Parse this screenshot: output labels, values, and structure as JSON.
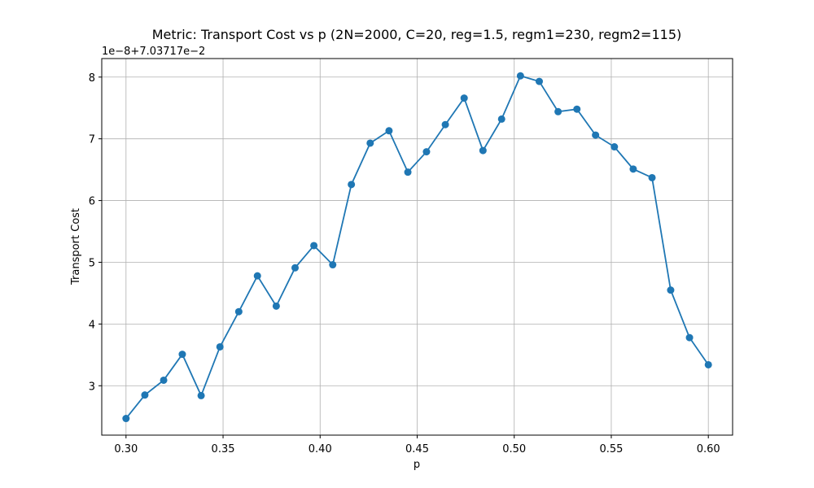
{
  "chart_data": {
    "type": "line",
    "title": "Metric: Transport Cost vs p (2N=2000, C=20, reg=1.5, regm1=230, regm2=115)",
    "xlabel": "p",
    "ylabel": "Transport Cost",
    "offset_text": "1e−8+7.03717e−2",
    "xlim": [
      0.2875,
      0.6125
    ],
    "ylim": [
      2.2,
      8.3
    ],
    "x_ticks": [
      0.3,
      0.35,
      0.4,
      0.45,
      0.5,
      0.55,
      0.6
    ],
    "x_tick_labels": [
      "0.30",
      "0.35",
      "0.40",
      "0.45",
      "0.50",
      "0.55",
      "0.60"
    ],
    "y_ticks": [
      3,
      4,
      5,
      6,
      7,
      8
    ],
    "y_tick_labels": [
      "3",
      "4",
      "5",
      "6",
      "7",
      "8"
    ],
    "grid": true,
    "marker": "circle",
    "color": "#1f77b4",
    "series": [
      {
        "x": [
          0.3,
          0.3097,
          0.3194,
          0.329,
          0.3387,
          0.3484,
          0.3581,
          0.3677,
          0.3774,
          0.3871,
          0.3968,
          0.4065,
          0.4161,
          0.4258,
          0.4355,
          0.4452,
          0.4548,
          0.4645,
          0.4742,
          0.4839,
          0.4935,
          0.5032,
          0.5129,
          0.5226,
          0.5323,
          0.5419,
          0.5516,
          0.5613,
          0.571,
          0.5806,
          0.5903,
          0.6
        ],
        "y": [
          2.47,
          2.85,
          3.09,
          3.51,
          2.84,
          3.63,
          4.2,
          4.78,
          4.29,
          4.91,
          5.27,
          4.96,
          6.26,
          6.93,
          7.13,
          6.46,
          6.79,
          7.23,
          7.66,
          6.81,
          7.32,
          8.02,
          7.93,
          7.44,
          7.48,
          7.06,
          6.87,
          6.51,
          6.37,
          4.55,
          3.78,
          3.34
        ]
      }
    ]
  }
}
